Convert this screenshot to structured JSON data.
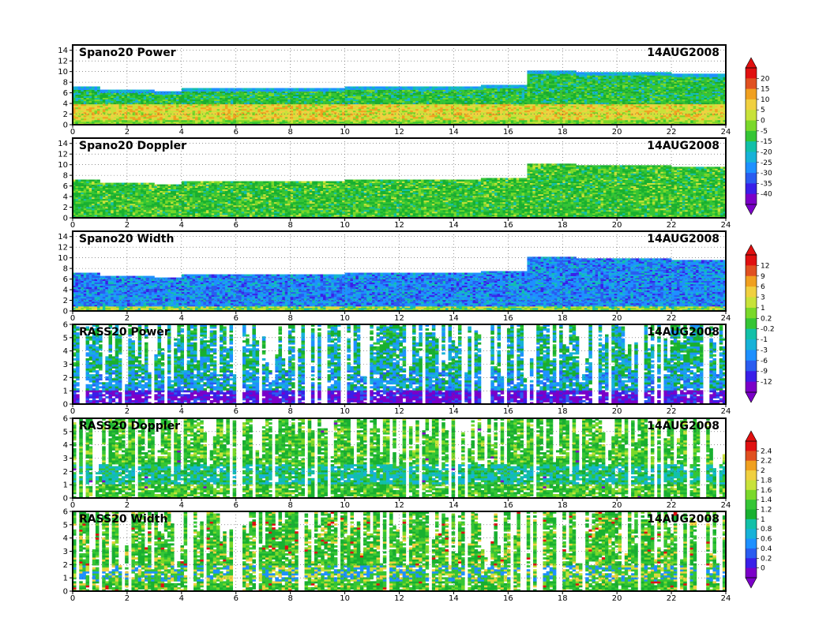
{
  "chart_data": [
    {
      "type": "heatmap",
      "title": "Spano20  Power",
      "date": "14AUG2008",
      "x_ticks": [
        "0",
        "2",
        "4",
        "6",
        "8",
        "10",
        "12",
        "14",
        "16",
        "18",
        "20",
        "22",
        "24"
      ],
      "xlim": [
        0,
        24
      ],
      "y_ticks": [
        "0",
        "2",
        "4",
        "6",
        "8",
        "10",
        "12",
        "14"
      ],
      "ylim": [
        0,
        15
      ],
      "grid": true,
      "colorbar": {
        "levels": [
          "20",
          "15",
          "10",
          "5",
          "0",
          "-5",
          "-15",
          "-20",
          "-25",
          "-30",
          "-35",
          "-40"
        ],
        "group": "spano_power_doppler"
      },
      "profile": {
        "cloud_top_before_17h": 7,
        "cloud_top_after_17h": 10,
        "core_band": [
          1,
          4
        ]
      }
    },
    {
      "type": "heatmap",
      "title": "Spano20  Doppler",
      "date": "14AUG2008",
      "x_ticks": [
        "0",
        "2",
        "4",
        "6",
        "8",
        "10",
        "12",
        "14",
        "16",
        "18",
        "20",
        "22",
        "24"
      ],
      "xlim": [
        0,
        24
      ],
      "y_ticks": [
        "0",
        "2",
        "4",
        "6",
        "8",
        "10",
        "12",
        "14"
      ],
      "ylim": [
        0,
        15
      ],
      "grid": true,
      "colorbar": {
        "group": "spano_power_doppler"
      }
    },
    {
      "type": "heatmap",
      "title": "Spano20  Width",
      "date": "14AUG2008",
      "x_ticks": [
        "0",
        "2",
        "4",
        "6",
        "8",
        "10",
        "12",
        "14",
        "16",
        "18",
        "20",
        "22",
        "24"
      ],
      "xlim": [
        0,
        24
      ],
      "y_ticks": [
        "0",
        "2",
        "4",
        "6",
        "8",
        "10",
        "12",
        "14"
      ],
      "ylim": [
        0,
        15
      ],
      "grid": true,
      "colorbar": {
        "levels": [
          "12",
          "9",
          "6",
          "3",
          "1",
          "0.2",
          "-0.2",
          "-1",
          "-3",
          "-6",
          "-9",
          "-12"
        ],
        "group": "spano_width_rass_power"
      }
    },
    {
      "type": "heatmap",
      "title": "RASS20  Power",
      "date": "14AUG2008",
      "x_ticks": [
        "0",
        "2",
        "4",
        "6",
        "8",
        "10",
        "12",
        "14",
        "16",
        "18",
        "20",
        "22",
        "24"
      ],
      "xlim": [
        0,
        24
      ],
      "y_ticks": [
        "0",
        "1",
        "2",
        "3",
        "4",
        "5",
        "6"
      ],
      "ylim": [
        0,
        6
      ],
      "grid": true,
      "colorbar": {
        "group": "spano_width_rass_power"
      }
    },
    {
      "type": "heatmap",
      "title": "RASS20  Doppler",
      "date": "14AUG2008",
      "x_ticks": [
        "0",
        "2",
        "4",
        "6",
        "8",
        "10",
        "12",
        "14",
        "16",
        "18",
        "20",
        "22",
        "24"
      ],
      "xlim": [
        0,
        24
      ],
      "y_ticks": [
        "0",
        "1",
        "2",
        "3",
        "4",
        "5",
        "6"
      ],
      "ylim": [
        0,
        6
      ],
      "grid": true,
      "colorbar": {
        "levels": [
          "2.4",
          "2.2",
          "2",
          "1.8",
          "1.6",
          "1.4",
          "1.2",
          "1",
          "0.8",
          "0.6",
          "0.4",
          "0.2",
          "0"
        ],
        "group": "rass_doppler_width"
      }
    },
    {
      "type": "heatmap",
      "title": "RASS20  Width",
      "date": "14AUG2008",
      "x_ticks": [
        "0",
        "2",
        "4",
        "6",
        "8",
        "10",
        "12",
        "14",
        "16",
        "18",
        "20",
        "22",
        "24"
      ],
      "xlim": [
        0,
        24
      ],
      "y_ticks": [
        "0",
        "1",
        "2",
        "3",
        "4",
        "5",
        "6"
      ],
      "ylim": [
        0,
        6
      ],
      "grid": true,
      "colorbar": {
        "group": "rass_doppler_width"
      }
    }
  ],
  "colors": {
    "palette": [
      "#7b00c8",
      "#3a1fe8",
      "#2a5cf0",
      "#1e90ff",
      "#17b2d8",
      "#12c0a8",
      "#18b030",
      "#35c535",
      "#7ad82a",
      "#c8e23a",
      "#f0d040",
      "#f0a020",
      "#e05020",
      "#e01010"
    ]
  }
}
